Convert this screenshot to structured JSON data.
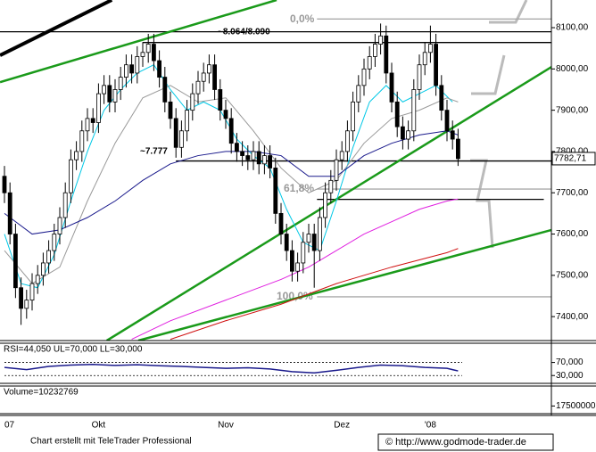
{
  "chart_data": {
    "type": "candlestick",
    "categories": [
      "07",
      null,
      null,
      null,
      null,
      null,
      null,
      null,
      null,
      null,
      null,
      null,
      null,
      null,
      null,
      null,
      null,
      "Okt",
      null,
      null,
      null,
      null,
      null,
      null,
      null,
      null,
      null,
      null,
      null,
      null,
      null,
      null,
      null,
      null,
      null,
      null,
      null,
      null,
      null,
      null,
      "Nov",
      null,
      null,
      null,
      null,
      null,
      null,
      null,
      null,
      null,
      null,
      null,
      null,
      null,
      null,
      null,
      null,
      null,
      null,
      null,
      null,
      "Dez",
      null,
      null,
      null,
      null,
      null,
      null,
      null,
      null,
      null,
      null,
      null,
      null,
      null,
      null,
      null,
      "'08",
      null,
      null,
      null,
      null,
      null
    ],
    "open": [
      7740,
      7700,
      7600,
      7470,
      7420,
      7440,
      7480,
      7500,
      7530,
      7560,
      7600,
      7640,
      7700,
      7780,
      7800,
      7850,
      7880,
      7870,
      7940,
      7960,
      7920,
      7950,
      7980,
      8010,
      7990,
      8030,
      8040,
      8060,
      8020,
      7980,
      7920,
      7880,
      7810,
      7850,
      7900,
      7940,
      7970,
      7990,
      8010,
      7950,
      7900,
      7880,
      7820,
      7800,
      7790,
      7780,
      7800,
      7770,
      7790,
      7760,
      7650,
      7600,
      7560,
      7510,
      7530,
      7580,
      7600,
      7560,
      7640,
      7700,
      7730,
      7780,
      7800,
      7850,
      7920,
      7960,
      8000,
      8030,
      8060,
      8080,
      7990,
      7920,
      7860,
      7830,
      7850,
      7950,
      8010,
      8040,
      8060,
      7960,
      7900,
      7850,
      7830
    ],
    "high": [
      7765,
      7725,
      7625,
      7495,
      7465,
      7505,
      7525,
      7555,
      7585,
      7625,
      7665,
      7725,
      7805,
      7825,
      7875,
      7905,
      7905,
      7965,
      7985,
      7985,
      7975,
      8005,
      8035,
      8035,
      8055,
      8065,
      8085,
      8085,
      8045,
      8005,
      7945,
      7905,
      7875,
      7925,
      7965,
      7995,
      8015,
      8035,
      8035,
      7975,
      7925,
      7905,
      7845,
      7825,
      7815,
      7825,
      7825,
      7815,
      7815,
      7785,
      7675,
      7625,
      7585,
      7555,
      7605,
      7625,
      7625,
      7665,
      7725,
      7755,
      7805,
      7825,
      7875,
      7945,
      7985,
      8025,
      8055,
      8085,
      8110,
      8105,
      8015,
      7945,
      7885,
      7875,
      7975,
      8035,
      8065,
      8105,
      8085,
      7985,
      7925,
      7875,
      7855
    ],
    "low": [
      7675,
      7575,
      7445,
      7380,
      7395,
      7415,
      7455,
      7475,
      7505,
      7535,
      7575,
      7615,
      7675,
      7755,
      7775,
      7825,
      7845,
      7845,
      7915,
      7895,
      7895,
      7925,
      7955,
      7965,
      7965,
      8005,
      8015,
      7995,
      7955,
      7895,
      7855,
      7785,
      7785,
      7825,
      7875,
      7915,
      7945,
      7965,
      7925,
      7875,
      7855,
      7795,
      7775,
      7765,
      7755,
      7755,
      7745,
      7745,
      7735,
      7625,
      7575,
      7535,
      7485,
      7485,
      7505,
      7555,
      7470,
      7535,
      7615,
      7675,
      7705,
      7755,
      7775,
      7825,
      7895,
      7935,
      7975,
      8005,
      8035,
      7965,
      7895,
      7835,
      7805,
      7805,
      7825,
      7925,
      7985,
      8015,
      7935,
      7875,
      7825,
      7805,
      7765
    ],
    "close": [
      7700,
      7600,
      7470,
      7420,
      7440,
      7480,
      7500,
      7530,
      7560,
      7600,
      7640,
      7700,
      7780,
      7800,
      7850,
      7880,
      7870,
      7940,
      7960,
      7920,
      7950,
      7980,
      8010,
      7990,
      8030,
      8040,
      8060,
      8020,
      7980,
      7920,
      7880,
      7810,
      7850,
      7900,
      7940,
      7970,
      7990,
      8010,
      7950,
      7900,
      7880,
      7820,
      7800,
      7790,
      7780,
      7800,
      7770,
      7790,
      7760,
      7650,
      7600,
      7560,
      7510,
      7530,
      7580,
      7600,
      7560,
      7640,
      7700,
      7730,
      7780,
      7800,
      7850,
      7920,
      7960,
      8000,
      8030,
      8060,
      8080,
      7990,
      7920,
      7860,
      7830,
      7850,
      7950,
      8010,
      8040,
      8060,
      7960,
      7900,
      7850,
      7830,
      7782.71
    ],
    "last_value_label": "7782,71",
    "ylim": [
      7342,
      8167
    ],
    "yticks": [
      {
        "value": 8100,
        "label": "8100,00"
      },
      {
        "value": 8000,
        "label": "8000,00"
      },
      {
        "value": 7900,
        "label": "7900,00"
      },
      {
        "value": 7800,
        "label": "7800,00"
      },
      {
        "value": 7700,
        "label": "7700,00"
      },
      {
        "value": 7600,
        "label": "7600,00"
      },
      {
        "value": 7500,
        "label": "7500,00"
      },
      {
        "value": 7400,
        "label": "7400,00"
      }
    ],
    "overlays": [
      {
        "color": "#00c8e6",
        "x": [
          0,
          3,
          6,
          9,
          12,
          15,
          18,
          21,
          24,
          27,
          30,
          33,
          36,
          39,
          42,
          45,
          48,
          51,
          54,
          57,
          60,
          63,
          66,
          69,
          72,
          75,
          78,
          81
        ],
        "values": [
          7600,
          7480,
          7470,
          7550,
          7680,
          7800,
          7900,
          7950,
          7990,
          8010,
          7950,
          7900,
          7920,
          7900,
          7830,
          7790,
          7760,
          7660,
          7580,
          7560,
          7680,
          7810,
          7920,
          7960,
          7920,
          7940,
          7960,
          7920
        ]
      },
      {
        "color": "#999999",
        "x": [
          0,
          5,
          10,
          15,
          20,
          25,
          30,
          35,
          40,
          45,
          50,
          55,
          60,
          65,
          70,
          75,
          80,
          82
        ],
        "values": [
          7560,
          7480,
          7520,
          7680,
          7820,
          7930,
          7960,
          7920,
          7930,
          7850,
          7760,
          7700,
          7730,
          7820,
          7880,
          7900,
          7930,
          7920
        ]
      },
      {
        "color": "#1a1a8c",
        "x": [
          0,
          5,
          10,
          15,
          20,
          25,
          30,
          35,
          40,
          45,
          50,
          55,
          60,
          65,
          70,
          75,
          80,
          82
        ],
        "values": [
          7650,
          7600,
          7610,
          7640,
          7680,
          7730,
          7770,
          7790,
          7800,
          7800,
          7790,
          7740,
          7740,
          7790,
          7820,
          7840,
          7850,
          7840
        ]
      },
      {
        "color": "#e020e0",
        "x": [
          23,
          30,
          40,
          50,
          55,
          60,
          65,
          70,
          75,
          80,
          82
        ],
        "values": [
          7345,
          7390,
          7440,
          7490,
          7520,
          7560,
          7600,
          7630,
          7660,
          7680,
          7685
        ]
      },
      {
        "color": "#d01010",
        "x": [
          30,
          40,
          50,
          60,
          70,
          80,
          82
        ],
        "values": [
          7345,
          7390,
          7430,
          7480,
          7520,
          7555,
          7565
        ]
      }
    ],
    "trendlines": [
      {
        "color": "#000000",
        "x": [
          -0.8,
          19.4
        ],
        "values": [
          8033,
          8167
        ]
      },
      {
        "color": "#1a9a1a",
        "x": [
          -0.8,
          49.2
        ],
        "values": [
          7968,
          8167
        ]
      },
      {
        "color": "#1a9a1a",
        "x": [
          18.5,
          98.9
        ],
        "values": [
          7342,
          8005
        ]
      },
      {
        "color": "#1a9a1a",
        "x": [
          24.2,
          98.9
        ],
        "values": [
          7342,
          7610
        ]
      }
    ],
    "levels": [
      {
        "value": 8090,
        "from": -1,
        "to": 99,
        "color": "#000000"
      },
      {
        "value": 8064,
        "from": 25,
        "to": 99,
        "color": "#000000"
      },
      {
        "value": 7777,
        "from": 31,
        "to": 99,
        "color": "#000000"
      },
      {
        "value": 8121,
        "from": 56.5,
        "to": 99,
        "color": "#aaaaaa"
      },
      {
        "value": 7709,
        "from": 56.5,
        "to": 99,
        "color": "#aaaaaa"
      },
      {
        "value": 7448,
        "from": 56.5,
        "to": 99,
        "color": "#aaaaaa"
      },
      {
        "value": 7684,
        "from": 56.5,
        "to": 97.5,
        "color": "#000000"
      }
    ],
    "annotations": [
      "0,0%",
      "~8.064/8.090",
      "~7.777",
      "61,8%",
      "100,0%"
    ],
    "rsi": {
      "label": "RSI=44,050 UL=70,000 LL=30,000",
      "color": "#1a1a8c",
      "ylim": [
        6,
        129
      ],
      "yticks": [
        {
          "value": 70,
          "label": "70,000"
        },
        {
          "value": 30,
          "label": "30,000"
        }
      ],
      "x": [
        0,
        4,
        8,
        12,
        16,
        20,
        24,
        28,
        32,
        36,
        40,
        44,
        48,
        52,
        56,
        60,
        64,
        68,
        72,
        76,
        80,
        82
      ],
      "values": [
        55,
        48,
        58,
        62,
        64,
        61,
        63,
        60,
        58,
        55,
        52,
        54,
        50,
        42,
        38,
        46,
        55,
        62,
        60,
        55,
        52,
        44.05
      ]
    },
    "volume": {
      "label": "Volume=10232769",
      "ylim": [
        0,
        63000000
      ],
      "yticks": [
        17500000
      ]
    },
    "footer": {
      "credit": "Chart erstellt mit TeleTrader Professional",
      "url": "© http://www.godmode-trader.de"
    }
  }
}
